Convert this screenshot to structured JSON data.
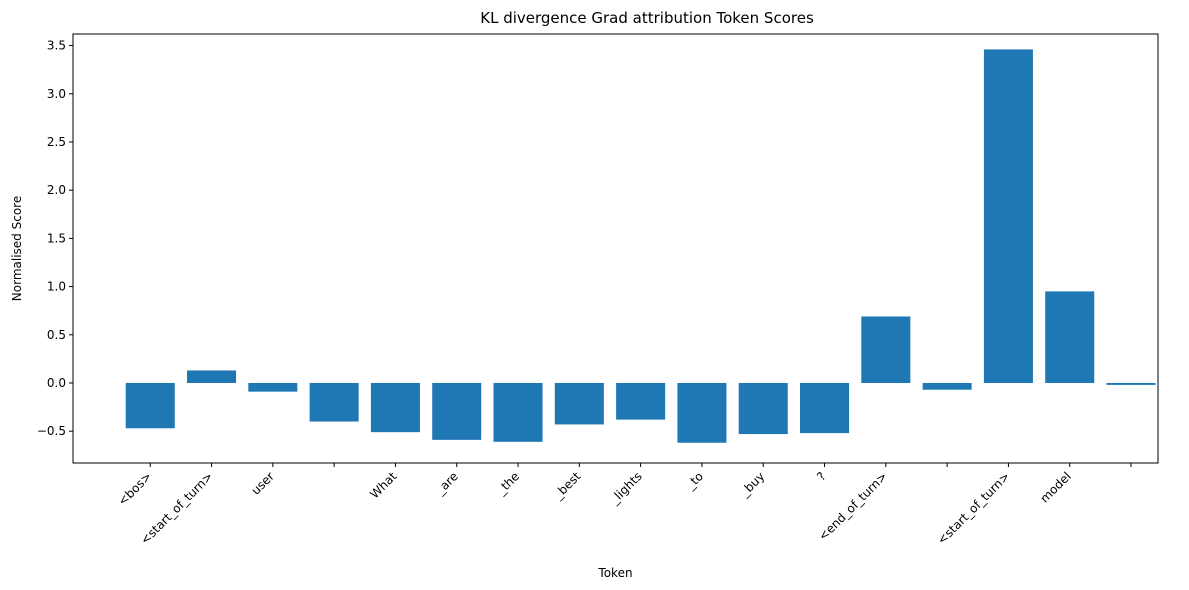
{
  "chart_data": {
    "type": "bar",
    "title": "KL divergence Grad attribution Token Scores",
    "xlabel": "Token",
    "ylabel": "Normalised Score",
    "categories": [
      "<bos>",
      "<start_of_turn>",
      "user",
      "",
      "What",
      "_are",
      "_the",
      "_best",
      "_lights",
      "_to",
      "_buy",
      "?",
      "<end_of_turn>",
      "",
      "<start_of_turn>",
      "model",
      ""
    ],
    "values": [
      -0.47,
      0.13,
      -0.09,
      -0.4,
      -0.51,
      -0.59,
      -0.61,
      -0.43,
      -0.38,
      -0.62,
      -0.53,
      -0.52,
      0.69,
      -0.07,
      3.46,
      0.95,
      -0.02
    ],
    "ylim": [
      -0.83,
      3.62
    ],
    "yticks": [
      -0.5,
      0.0,
      0.5,
      1.0,
      1.5,
      2.0,
      2.5,
      3.0,
      3.5
    ],
    "ytick_labels": [
      "−0.5",
      "0.0",
      "0.5",
      "1.0",
      "1.5",
      "2.0",
      "2.5",
      "3.0",
      "3.5"
    ],
    "grid": false,
    "legend": "none",
    "color": "#1f77b4"
  }
}
